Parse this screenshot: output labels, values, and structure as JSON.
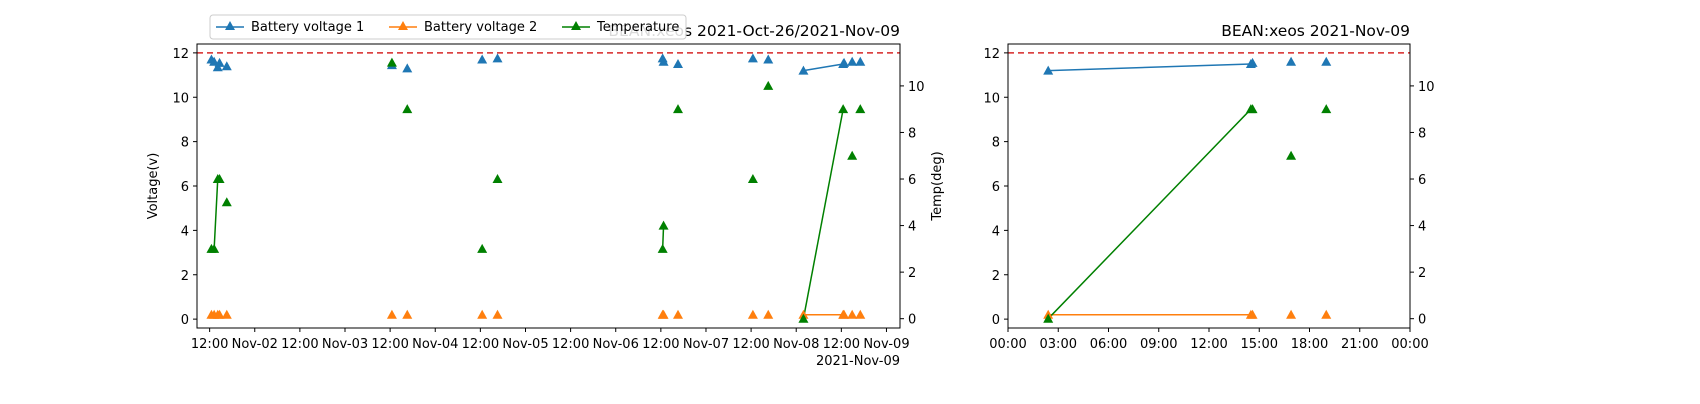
{
  "chart_data": [
    {
      "type": "line",
      "title": "BEAN:xeos 2021-Oct-26/2021-Nov-09",
      "ylabel": "Voltage(v)",
      "ylabel_right": "Temp(deg)",
      "ylim": [
        -0.4,
        12.4
      ],
      "ylim_right": [
        -0.4,
        11.8
      ],
      "yticks": [
        0,
        2,
        4,
        6,
        8,
        10,
        12
      ],
      "yticks_right": [
        0,
        2,
        4,
        6,
        8,
        10
      ],
      "xlim": [
        1.36,
        9.15
      ],
      "xticks": [
        {
          "x": 1.5,
          "label": "12:00"
        },
        {
          "x": 2.0,
          "label": "Nov-02"
        },
        {
          "x": 2.5,
          "label": "12:00"
        },
        {
          "x": 3.0,
          "label": "Nov-03"
        },
        {
          "x": 3.5,
          "label": "12:00"
        },
        {
          "x": 4.0,
          "label": "Nov-04"
        },
        {
          "x": 4.5,
          "label": "12:00"
        },
        {
          "x": 5.0,
          "label": "Nov-05"
        },
        {
          "x": 5.5,
          "label": "12:00"
        },
        {
          "x": 6.0,
          "label": "Nov-06"
        },
        {
          "x": 6.5,
          "label": "12:00"
        },
        {
          "x": 7.0,
          "label": "Nov-07"
        },
        {
          "x": 7.5,
          "label": "12:00"
        },
        {
          "x": 8.0,
          "label": "Nov-08"
        },
        {
          "x": 8.5,
          "label": "12:00"
        },
        {
          "x": 9.0,
          "label": "Nov-09"
        }
      ],
      "x_offset_label": "2021-Nov-09",
      "threshold": {
        "y": 12.0,
        "color": "#d62728",
        "style": "dashed"
      },
      "legend": {
        "placement": "top-left",
        "entries": [
          "Battery voltage 1",
          "Battery voltage 2",
          "Temperature"
        ]
      },
      "series": [
        {
          "name": "Battery voltage 1",
          "color": "#1f77b4",
          "marker": "triangle",
          "axis": "left",
          "segments": [
            [
              [
                8.08,
                11.2
              ],
              [
                8.52,
                11.5
              ]
            ]
          ],
          "points": [
            [
              1.52,
              11.7
            ],
            [
              1.55,
              11.6
            ],
            [
              1.59,
              11.35
            ],
            [
              1.61,
              11.55
            ],
            [
              1.69,
              11.4
            ],
            [
              3.52,
              11.45
            ],
            [
              3.69,
              11.3
            ],
            [
              4.52,
              11.7
            ],
            [
              4.69,
              11.75
            ],
            [
              6.52,
              11.75
            ],
            [
              6.53,
              11.6
            ],
            [
              6.69,
              11.5
            ],
            [
              7.52,
              11.75
            ],
            [
              7.69,
              11.7
            ],
            [
              8.08,
              11.2
            ],
            [
              8.52,
              11.5
            ],
            [
              8.53,
              11.55
            ],
            [
              8.62,
              11.6
            ],
            [
              8.71,
              11.6
            ]
          ]
        },
        {
          "name": "Battery voltage 2",
          "color": "#ff7f0e",
          "marker": "triangle",
          "axis": "left",
          "segments": [
            [
              [
                8.08,
                0.2
              ],
              [
                8.52,
                0.2
              ]
            ]
          ],
          "points": [
            [
              1.52,
              0.2
            ],
            [
              1.55,
              0.2
            ],
            [
              1.59,
              0.2
            ],
            [
              1.61,
              0.2
            ],
            [
              1.69,
              0.2
            ],
            [
              3.52,
              0.2
            ],
            [
              3.69,
              0.2
            ],
            [
              4.52,
              0.2
            ],
            [
              4.69,
              0.2
            ],
            [
              6.52,
              0.2
            ],
            [
              6.53,
              0.2
            ],
            [
              6.69,
              0.2
            ],
            [
              7.52,
              0.2
            ],
            [
              7.69,
              0.2
            ],
            [
              8.08,
              0.2
            ],
            [
              8.52,
              0.2
            ],
            [
              8.53,
              0.2
            ],
            [
              8.62,
              0.2
            ],
            [
              8.71,
              0.2
            ]
          ]
        },
        {
          "name": "Temperature",
          "color": "#008000",
          "marker": "triangle",
          "axis": "right",
          "segments": [
            [
              [
                1.52,
                3
              ],
              [
                1.55,
                3
              ],
              [
                1.59,
                6
              ],
              [
                1.61,
                6
              ]
            ],
            [
              [
                6.52,
                3
              ],
              [
                6.53,
                4
              ]
            ],
            [
              [
                8.08,
                0
              ],
              [
                8.52,
                9
              ]
            ]
          ],
          "points": [
            [
              1.52,
              3
            ],
            [
              1.55,
              3
            ],
            [
              1.59,
              6
            ],
            [
              1.61,
              6
            ],
            [
              1.69,
              5
            ],
            [
              3.52,
              11
            ],
            [
              3.69,
              9
            ],
            [
              4.52,
              3
            ],
            [
              4.69,
              6
            ],
            [
              6.52,
              3
            ],
            [
              6.53,
              4
            ],
            [
              6.69,
              9
            ],
            [
              7.52,
              6
            ],
            [
              7.69,
              10
            ],
            [
              8.08,
              0
            ],
            [
              8.52,
              9
            ],
            [
              8.62,
              7
            ],
            [
              8.71,
              9
            ]
          ]
        }
      ]
    },
    {
      "type": "line",
      "title": "BEAN:xeos 2021-Nov-09",
      "ylim": [
        -0.4,
        12.4
      ],
      "ylim_right": [
        -0.4,
        11.8
      ],
      "yticks": [
        0,
        2,
        4,
        6,
        8,
        10,
        12
      ],
      "yticks_right": [
        0,
        2,
        4,
        6,
        8,
        10
      ],
      "xlim": [
        0,
        24
      ],
      "xticks": [
        {
          "x": 0,
          "label": "00:00"
        },
        {
          "x": 3,
          "label": "03:00"
        },
        {
          "x": 6,
          "label": "06:00"
        },
        {
          "x": 9,
          "label": "09:00"
        },
        {
          "x": 12,
          "label": "12:00"
        },
        {
          "x": 15,
          "label": "15:00"
        },
        {
          "x": 18,
          "label": "18:00"
        },
        {
          "x": 21,
          "label": "21:00"
        },
        {
          "x": 24,
          "label": "00:00"
        }
      ],
      "threshold": {
        "y": 12.0,
        "color": "#d62728",
        "style": "dashed"
      },
      "series": [
        {
          "name": "Battery voltage 1",
          "color": "#1f77b4",
          "marker": "triangle",
          "axis": "left",
          "segments": [
            [
              [
                2.4,
                11.2
              ],
              [
                14.5,
                11.5
              ]
            ]
          ],
          "points": [
            [
              2.4,
              11.2
            ],
            [
              14.5,
              11.5
            ],
            [
              14.6,
              11.55
            ],
            [
              16.9,
              11.6
            ],
            [
              19.0,
              11.6
            ]
          ]
        },
        {
          "name": "Battery voltage 2",
          "color": "#ff7f0e",
          "marker": "triangle",
          "axis": "left",
          "segments": [
            [
              [
                2.4,
                0.2
              ],
              [
                14.5,
                0.2
              ]
            ]
          ],
          "points": [
            [
              2.4,
              0.2
            ],
            [
              14.5,
              0.2
            ],
            [
              14.6,
              0.2
            ],
            [
              16.9,
              0.2
            ],
            [
              19.0,
              0.2
            ]
          ]
        },
        {
          "name": "Temperature",
          "color": "#008000",
          "marker": "triangle",
          "axis": "right",
          "segments": [
            [
              [
                2.4,
                0
              ],
              [
                14.5,
                9
              ]
            ]
          ],
          "points": [
            [
              2.4,
              0
            ],
            [
              14.5,
              9
            ],
            [
              14.6,
              9
            ],
            [
              16.9,
              7
            ],
            [
              19.0,
              9
            ]
          ]
        }
      ]
    }
  ]
}
